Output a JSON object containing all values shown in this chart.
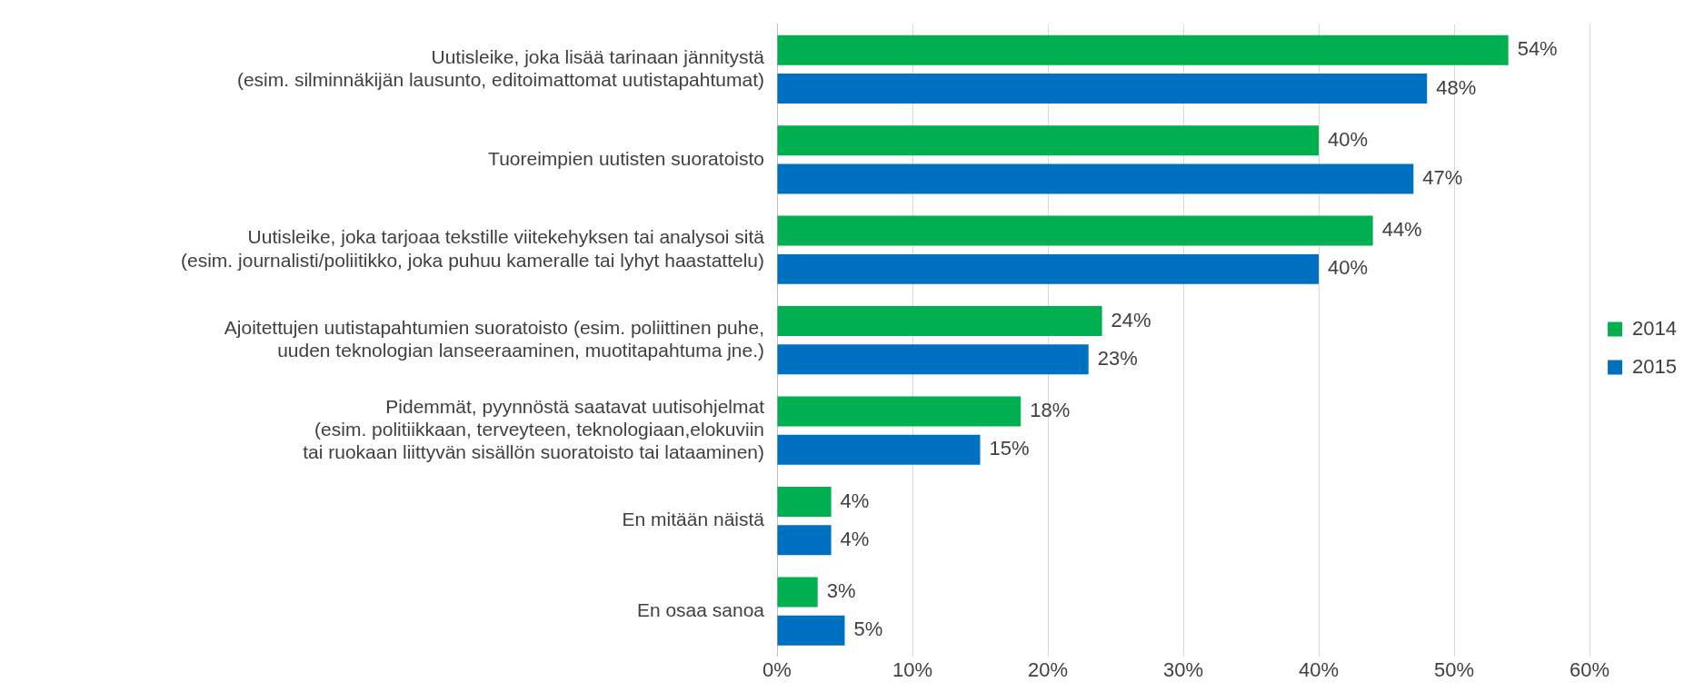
{
  "chart_data": {
    "type": "bar",
    "orientation": "horizontal",
    "categories": [
      "Uutisleike, joka lisää tarinaan jännitystä\n(esim. silminnäkijän lausunto, editoimattomat uutistapahtumat)",
      "Tuoreimpien uutisten suoratoisto",
      "Uutisleike, joka tarjoaa tekstille viitekehyksen tai analysoi sitä\n(esim. journalisti/poliitikko, joka puhuu kameralle tai lyhyt haastattelu)",
      "Ajoitettujen uutistapahtumien suoratoisto (esim. poliittinen puhe,\nuuden teknologian lanseeraaminen, muotitapahtuma jne.)",
      "Pidemmät, pyynnöstä saatavat uutisohjelmat\n(esim. politiikkaan, terveyteen, teknologiaan,elokuviin\ntai ruokaan liittyvän sisällön suoratoisto tai lataaminen)",
      "En mitään näistä",
      "En osaa sanoa"
    ],
    "series": [
      {
        "name": "2014",
        "color": "#00b050",
        "values": [
          54,
          40,
          44,
          24,
          18,
          4,
          3
        ],
        "value_labels": [
          "54%",
          "40%",
          "44%",
          "24%",
          "18%",
          "4%",
          "3%"
        ]
      },
      {
        "name": "2015",
        "color": "#0070c0",
        "values": [
          48,
          47,
          40,
          23,
          15,
          4,
          5
        ],
        "value_labels": [
          "48%",
          "47%",
          "40%",
          "23%",
          "15%",
          "4%",
          "5%"
        ]
      }
    ],
    "xlim": [
      0,
      60
    ],
    "xticks": [
      {
        "value": 0,
        "label": "0%"
      },
      {
        "value": 10,
        "label": "10%"
      },
      {
        "value": 20,
        "label": "20%"
      },
      {
        "value": 30,
        "label": "30%"
      },
      {
        "value": 40,
        "label": "40%"
      },
      {
        "value": 50,
        "label": "50%"
      },
      {
        "value": 60,
        "label": "60%"
      }
    ],
    "grid": "x",
    "legend": "right"
  }
}
